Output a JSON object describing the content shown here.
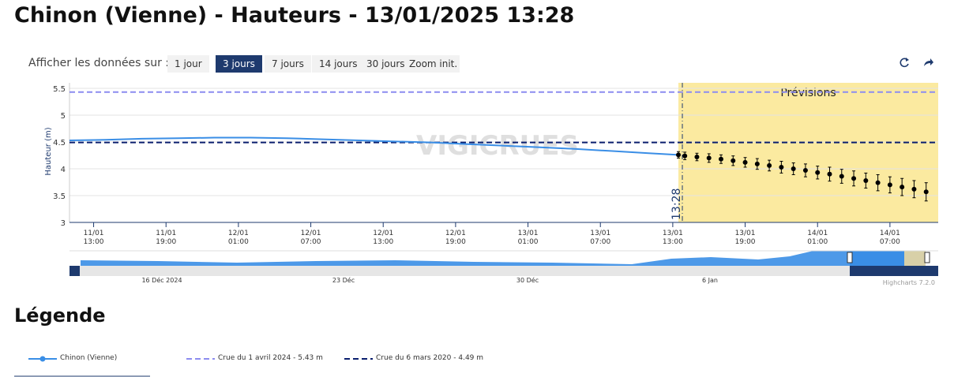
{
  "header": {
    "title": "Chinon (Vienne) - Hauteurs - 13/01/2025 13:28",
    "show_label": "Afficher les données sur :",
    "buttons": [
      "1 jour",
      "3 jours",
      "7 jours",
      "14 jours",
      "30 jours",
      "Zoom init."
    ],
    "active_button": 1
  },
  "chart_data": {
    "type": "line",
    "y_label": "Hauteur (m)",
    "watermark": "VIGICRUES",
    "forecast_label": "Prévisions",
    "forecast_start": "13/01 13:28",
    "now_label": "13:28",
    "xlim": [
      "11/01 11:00",
      "14/01 11:00"
    ],
    "xticks": [
      "11/01 13:00",
      "11/01 19:00",
      "12/01 01:00",
      "12/01 07:00",
      "12/01 13:00",
      "12/01 19:00",
      "13/01 01:00",
      "13/01 07:00",
      "13/01 13:00",
      "13/01 19:00",
      "14/01 01:00",
      "14/01 07:00"
    ],
    "ylim": [
      3,
      5.5
    ],
    "yticks": [
      3,
      3.5,
      4,
      4.5,
      5,
      5.5
    ],
    "grid": true,
    "series": [
      {
        "name": "Chinon (Vienne)",
        "color": "#3a8ee6",
        "x": [
          "11/01 11:00",
          "11/01 14:00",
          "11/01 17:00",
          "11/01 20:00",
          "11/01 23:00",
          "12/01 02:00",
          "12/01 05:00",
          "12/01 08:00",
          "12/01 11:00",
          "12/01 14:00",
          "12/01 17:00",
          "12/01 20:00",
          "12/01 23:00",
          "13/01 02:00",
          "13/01 05:00",
          "13/01 08:00",
          "13/01 11:00",
          "13/01 13:28"
        ],
        "values": [
          4.53,
          4.54,
          4.56,
          4.57,
          4.58,
          4.58,
          4.57,
          4.55,
          4.53,
          4.51,
          4.49,
          4.46,
          4.43,
          4.4,
          4.37,
          4.33,
          4.29,
          4.26
        ]
      },
      {
        "color": "#000000",
        "x": [
          "13/01 13:28",
          "13/01 14:00",
          "13/01 15:00",
          "13/01 16:00",
          "13/01 17:00",
          "13/01 18:00",
          "13/01 19:00",
          "13/01 20:00",
          "13/01 21:00",
          "13/01 22:00",
          "13/01 23:00",
          "14/01 00:00",
          "14/01 01:00",
          "14/01 02:00",
          "14/01 03:00",
          "14/01 04:00",
          "14/01 05:00",
          "14/01 06:00",
          "14/01 07:00",
          "14/01 08:00",
          "14/01 09:00",
          "14/01 10:00"
        ],
        "values": [
          4.26,
          4.24,
          4.22,
          4.2,
          4.18,
          4.15,
          4.12,
          4.09,
          4.06,
          4.03,
          4.0,
          3.97,
          3.93,
          3.9,
          3.86,
          3.82,
          3.78,
          3.74,
          3.7,
          3.66,
          3.62,
          3.57
        ],
        "errors": [
          0.06,
          0.07,
          0.07,
          0.08,
          0.08,
          0.09,
          0.09,
          0.1,
          0.1,
          0.11,
          0.11,
          0.12,
          0.12,
          0.13,
          0.13,
          0.14,
          0.14,
          0.15,
          0.15,
          0.16,
          0.16,
          0.17
        ]
      }
    ],
    "thresholds": [
      {
        "name": "Crue du 1 avril 2024 - 5.43 m",
        "value": 5.43,
        "color": "#8c8cf0"
      },
      {
        "name": "Crue du 6 mars 2020 - 4.49 m",
        "value": 4.49,
        "color": "#0a1e6e"
      }
    ],
    "navigator_labels": [
      "16 Déc 2024",
      "23 Déc",
      "30 Déc",
      "6 Jan"
    ],
    "credits": "Highcharts 7.2.0"
  },
  "legend": {
    "title": "Légende"
  }
}
